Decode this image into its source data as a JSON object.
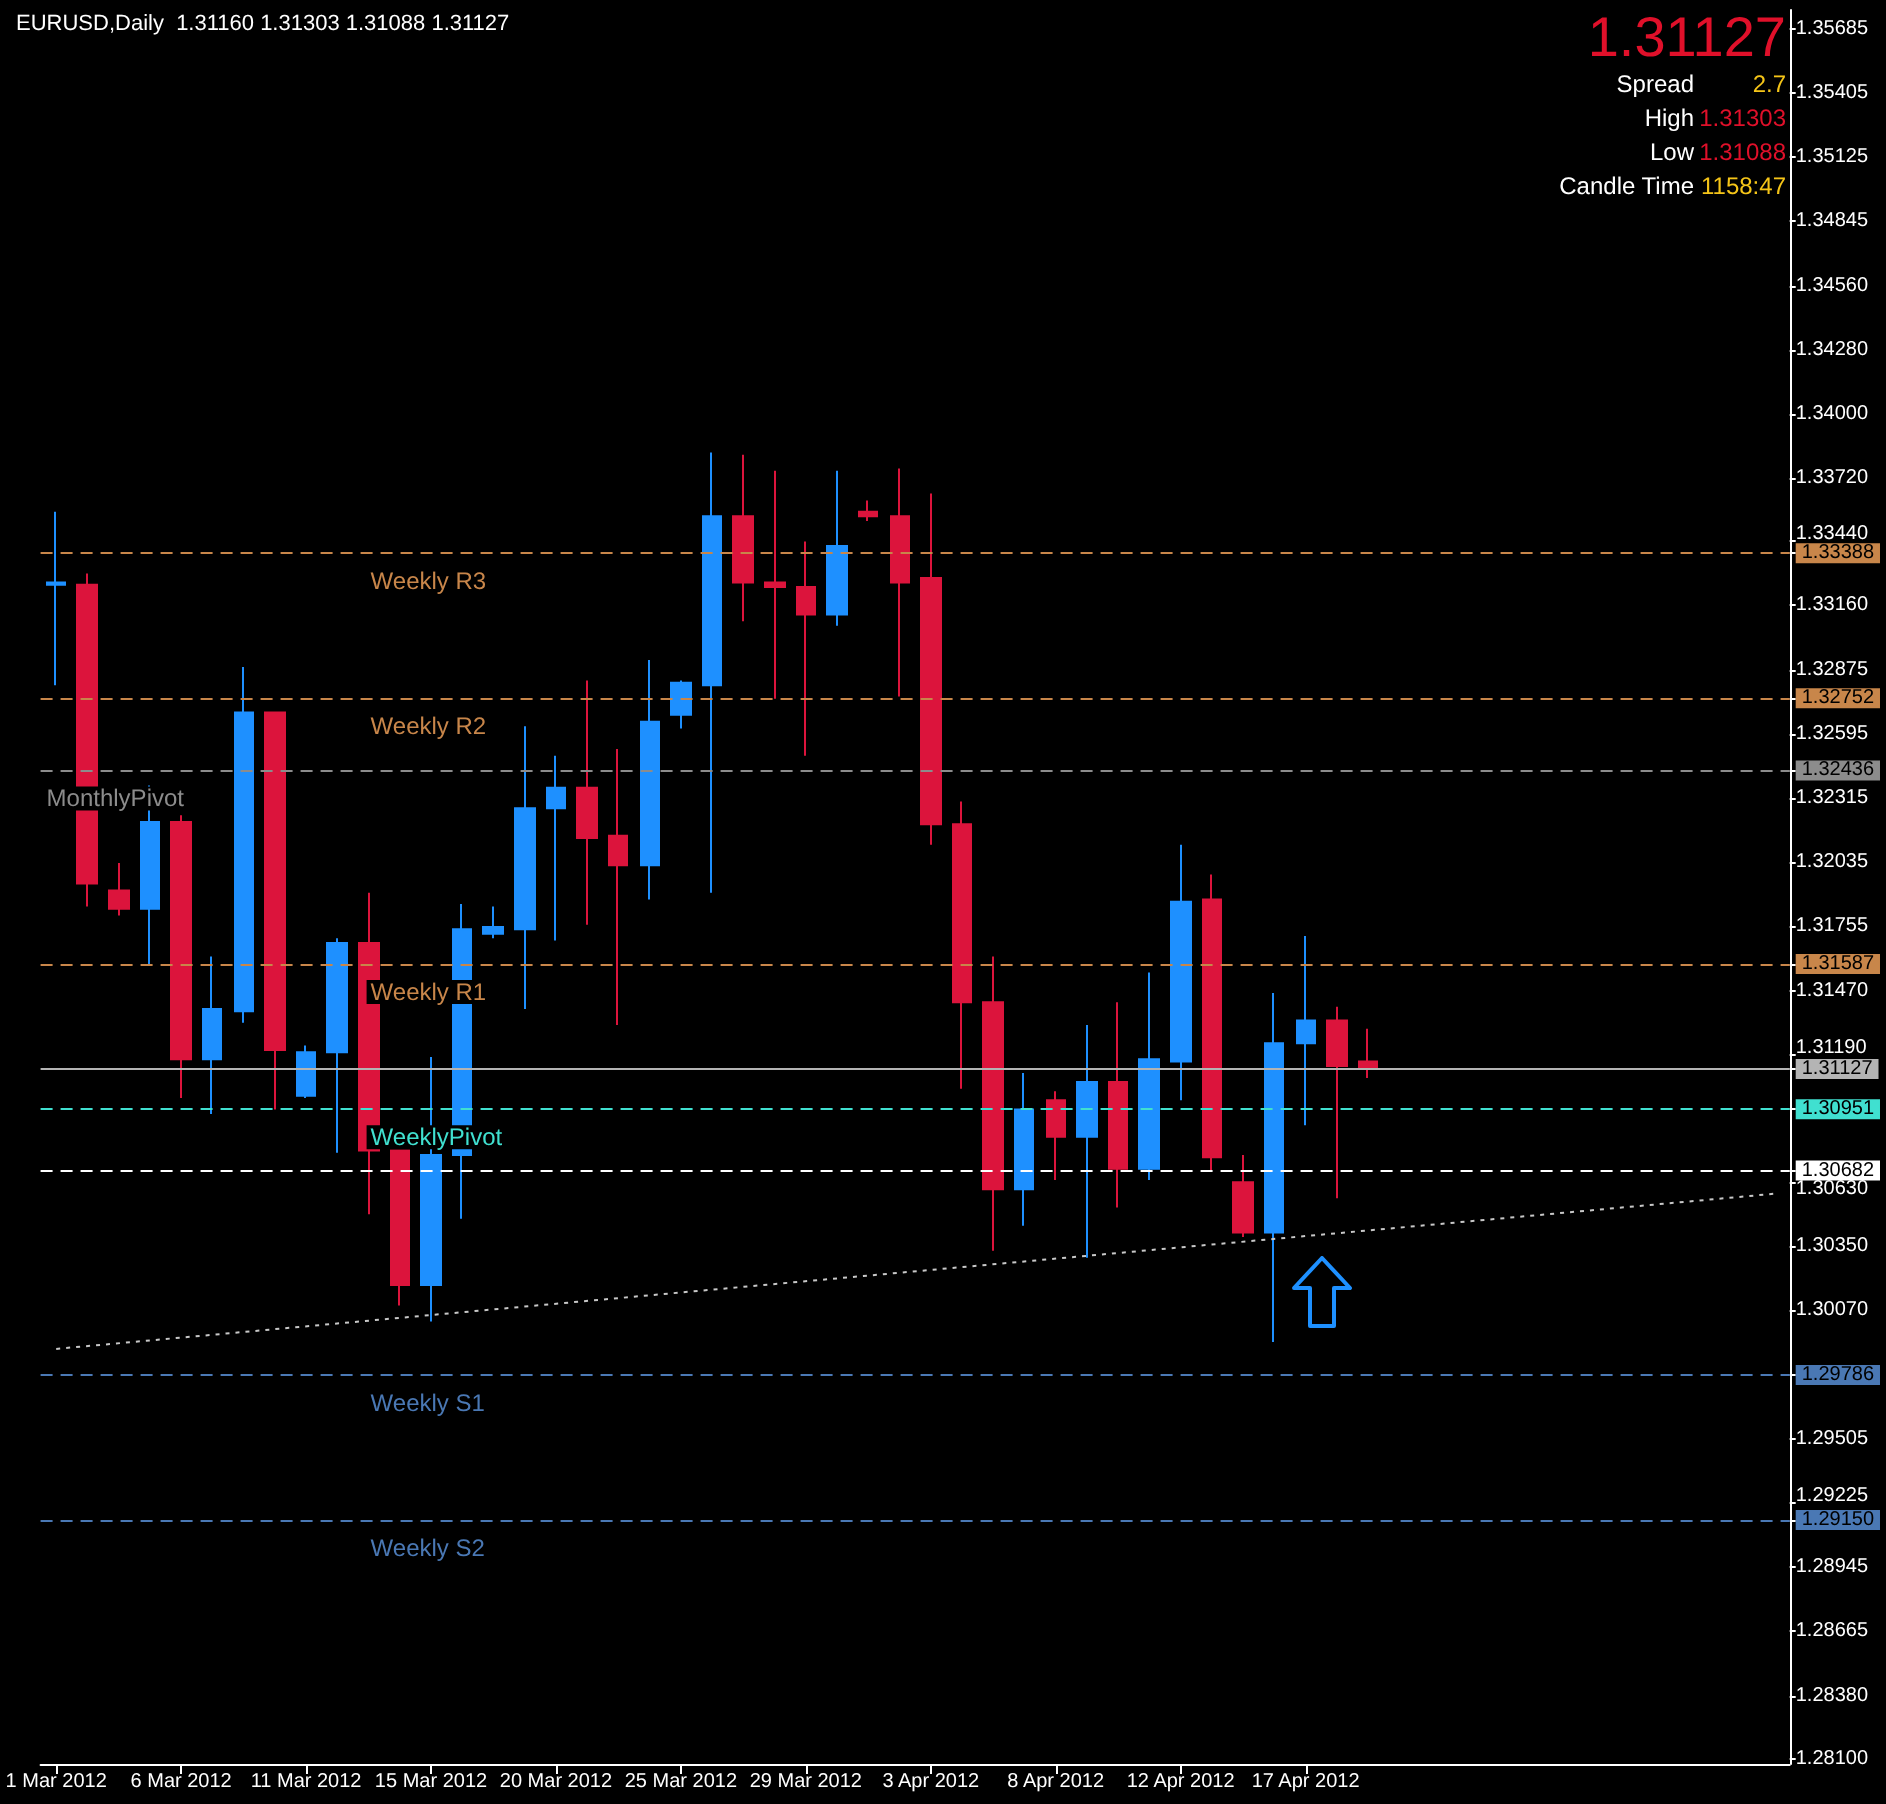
{
  "chart_data": {
    "type": "candlestick",
    "title": "EURUSD,Daily  1.31160 1.31303 1.31088 1.31127",
    "annotations": [
      "1.31127",
      "Spread",
      "2.7",
      "High",
      "1.31303",
      "Low",
      "1.31088",
      "Candle Time",
      "1158:47"
    ],
    "categories": [
      "1 Mar 2012",
      null,
      null,
      null,
      "6 Mar 2012",
      null,
      null,
      null,
      "11 Mar 2012",
      null,
      null,
      null,
      "15 Mar 2012",
      null,
      null,
      null,
      "20 Mar 2012",
      null,
      null,
      null,
      "25 Mar 2012",
      null,
      null,
      null,
      "29 Mar 2012",
      null,
      null,
      null,
      "3 Apr 2012",
      null,
      null,
      null,
      "8 Apr 2012",
      null,
      null,
      null,
      "12 Apr 2012",
      null,
      null,
      null,
      "17 Apr 2012",
      null,
      null,
      null,
      null,
      null,
      null,
      null,
      null,
      null,
      null,
      null,
      null,
      null,
      null,
      null
    ],
    "ohlc": [
      [
        1.3325,
        1.3357,
        1.3281,
        1.3326
      ],
      [
        1.3325,
        1.333,
        1.3184,
        1.3194
      ],
      [
        1.3191,
        1.3203,
        1.318,
        1.3183
      ],
      [
        1.3183,
        1.3237,
        1.3158,
        1.3221
      ],
      [
        1.3221,
        1.3224,
        1.31,
        1.3117
      ],
      [
        1.3117,
        1.3162,
        1.3093,
        1.3139
      ],
      [
        1.3138,
        1.3289,
        1.3133,
        1.3269
      ],
      [
        1.3269,
        1.3269,
        1.3095,
        1.3121
      ],
      [
        1.3101,
        1.3123,
        1.31,
        1.312
      ],
      [
        1.312,
        1.317,
        1.3076,
        1.3168
      ],
      [
        1.3168,
        1.319,
        1.3049,
        1.3077
      ],
      [
        1.3077,
        1.3077,
        1.3009,
        1.3018
      ],
      [
        1.3018,
        1.3118,
        1.3002,
        1.3075
      ],
      [
        1.3075,
        1.3185,
        1.3047,
        1.3174
      ],
      [
        1.3172,
        1.3184,
        1.317,
        1.3175
      ],
      [
        1.3174,
        1.3263,
        1.3139,
        1.3227
      ],
      [
        1.3227,
        1.325,
        1.3169,
        1.3236
      ],
      [
        1.3236,
        1.3283,
        1.3176,
        1.3214
      ],
      [
        1.3215,
        1.3253,
        1.3132,
        1.3202
      ],
      [
        1.3202,
        1.3292,
        1.3187,
        1.3265
      ],
      [
        1.3268,
        1.3283,
        1.3262,
        1.3282
      ],
      [
        1.3281,
        1.3383,
        1.319,
        1.3355
      ],
      [
        1.3355,
        1.3382,
        1.3309,
        1.3326
      ],
      [
        1.3326,
        1.3375,
        1.3275,
        1.3324
      ],
      [
        1.3324,
        1.3344,
        1.325,
        1.3312
      ],
      [
        1.3312,
        1.3375,
        1.3307,
        1.3342
      ],
      [
        1.3357,
        1.3362,
        1.3353,
        1.3355
      ],
      [
        1.3355,
        1.3376,
        1.3276,
        1.3326
      ],
      [
        1.3328,
        1.3365,
        1.3211,
        1.322
      ],
      [
        1.322,
        1.323,
        1.3104,
        1.3142
      ],
      [
        1.3142,
        1.3162,
        1.3033,
        1.306
      ],
      [
        1.306,
        1.3111,
        1.3044,
        1.3095
      ],
      [
        1.3099,
        1.3103,
        1.3064,
        1.3083
      ],
      [
        1.3083,
        1.3132,
        1.303,
        1.3107
      ],
      [
        1.3107,
        1.3142,
        1.3052,
        1.3069
      ],
      [
        1.3069,
        1.3155,
        1.3064,
        1.3117
      ],
      [
        1.3116,
        1.3211,
        1.3099,
        1.3186
      ],
      [
        1.3187,
        1.3198,
        1.3068,
        1.3074
      ],
      [
        1.3063,
        1.3075,
        1.3039,
        1.3041
      ],
      [
        1.3041,
        1.3146,
        1.2993,
        1.3124
      ],
      [
        1.3124,
        1.3171,
        1.3088,
        1.3134
      ],
      [
        1.3134,
        1.314,
        1.3056,
        1.3114
      ],
      [
        1.3116,
        1.31303,
        1.31088,
        1.31127
      ],
      null,
      null,
      null,
      null,
      null,
      null,
      null,
      null,
      null,
      null,
      null,
      null,
      null
    ],
    "colors": [
      "#1e90ff",
      "#dc143c",
      "#dc143c",
      "#1e90ff",
      "#dc143c",
      "#1e90ff",
      "#1e90ff",
      "#dc143c",
      "#1e90ff",
      "#1e90ff",
      "#dc143c",
      "#dc143c",
      "#1e90ff",
      "#1e90ff",
      "#1e90ff",
      "#1e90ff",
      "#1e90ff",
      "#dc143c",
      "#dc143c",
      "#1e90ff",
      "#1e90ff",
      "#1e90ff",
      "#dc143c",
      "#dc143c",
      "#dc143c",
      "#1e90ff",
      "#dc143c",
      "#dc143c",
      "#dc143c",
      "#dc143c",
      "#dc143c",
      "#1e90ff",
      "#dc143c",
      "#1e90ff",
      "#dc143c",
      "#1e90ff",
      "#1e90ff",
      "#dc143c",
      "#dc143c",
      "#1e90ff",
      "#1e90ff",
      "#dc143c",
      "#dc143c",
      null,
      null,
      null,
      null,
      null,
      null,
      null,
      null,
      null,
      null,
      null,
      null,
      null
    ],
    "series": [
      {
        "type": "line",
        "color": "#c8c8c8",
        "values": [
          1.299,
          null,
          null,
          null,
          null,
          null,
          null,
          null,
          null,
          null,
          null,
          null,
          null,
          null,
          null,
          null,
          null,
          null,
          null,
          null,
          null,
          null,
          null,
          null,
          null,
          null,
          null,
          null,
          null,
          null,
          null,
          null,
          null,
          null,
          null,
          null,
          null,
          null,
          null,
          null,
          null,
          null,
          null,
          null,
          null,
          null,
          null,
          null,
          null,
          null,
          null,
          null,
          null,
          null,
          null,
          1.3058
        ]
      }
    ],
    "line_style": "dotted",
    "marker": "none",
    "ylim": [
      1.2808,
      1.3577
    ],
    "yticks": [
      {
        "value": 1.35685,
        "label": "1.35685"
      },
      {
        "value": 1.35405,
        "label": "1.35405"
      },
      {
        "value": 1.35125,
        "label": "1.35125"
      },
      {
        "value": 1.34845,
        "label": "1.34845"
      },
      {
        "value": 1.3456,
        "label": "1.34560"
      },
      {
        "value": 1.3428,
        "label": "1.34280"
      },
      {
        "value": 1.34,
        "label": "1.34000"
      },
      {
        "value": 1.3372,
        "label": "1.33720"
      },
      {
        "value": 1.3344,
        "label": "1.33440"
      },
      {
        "value": 1.33388,
        "label": "1.33388"
      },
      {
        "value": 1.3316,
        "label": "1.33160"
      },
      {
        "value": 1.32875,
        "label": "1.32875"
      },
      {
        "value": 1.32752,
        "label": "1.32752"
      },
      {
        "value": 1.32595,
        "label": "1.32595"
      },
      {
        "value": 1.32436,
        "label": "1.32436"
      },
      {
        "value": 1.32315,
        "label": "1.32315"
      },
      {
        "value": 1.32035,
        "label": "1.32035"
      },
      {
        "value": 1.31755,
        "label": "1.31755"
      },
      {
        "value": 1.31587,
        "label": "1.31587"
      },
      {
        "value": 1.3147,
        "label": "1.31470"
      },
      {
        "value": 1.3119,
        "label": "1.31190"
      },
      {
        "value": 1.31127,
        "label": "1.31127"
      },
      {
        "value": 1.30951,
        "label": "1.30951"
      },
      {
        "value": 1.30682,
        "label": "1.30682"
      },
      {
        "value": 1.3063,
        "label": "1.30630"
      },
      {
        "value": 1.3035,
        "label": "1.30350"
      },
      {
        "value": 1.3007,
        "label": "1.30070"
      },
      {
        "value": 1.29786,
        "label": "1.29786"
      },
      {
        "value": 1.29505,
        "label": "1.29505"
      },
      {
        "value": 1.29225,
        "label": "1.29225"
      },
      {
        "value": 1.2915,
        "label": "1.29150"
      },
      {
        "value": 1.28945,
        "label": "1.28945"
      },
      {
        "value": 1.28665,
        "label": "1.28665"
      },
      {
        "value": 1.2838,
        "label": "1.28380"
      },
      {
        "value": 1.281,
        "label": "1.28100"
      }
    ],
    "ref_lines": [
      {
        "axis": "y",
        "value": 1.33388,
        "label": "Weekly R3",
        "color": "#c8864a",
        "line_style": "dashed"
      },
      {
        "axis": "y",
        "value": 1.32752,
        "label": "Weekly R2",
        "color": "#c8864a",
        "line_style": "dashed"
      },
      {
        "axis": "y",
        "value": 1.32436,
        "label": "MonthlyPivot",
        "color": "#8c8c8c",
        "line_style": "dashed"
      },
      {
        "axis": "y",
        "value": 1.31587,
        "label": "Weekly R1",
        "color": "#c8864a",
        "line_style": "dashed"
      },
      {
        "axis": "y",
        "value": 1.31127,
        "label": null,
        "color": "#b4b4b4",
        "line_style": "solid"
      },
      {
        "axis": "y",
        "value": 1.30951,
        "label": "WeeklyPivot",
        "color": "#40e0d0",
        "line_style": "dashed"
      },
      {
        "axis": "y",
        "value": 1.30682,
        "label": null,
        "color": "#ffffff",
        "line_style": "dashed"
      },
      {
        "axis": "y",
        "value": 1.29786,
        "label": "Weekly S1",
        "color": "#4a78b4",
        "line_style": "dashed"
      },
      {
        "axis": "y",
        "value": 1.2915,
        "label": "Weekly S2",
        "color": "#4a78b4",
        "line_style": "dashed"
      }
    ]
  }
}
